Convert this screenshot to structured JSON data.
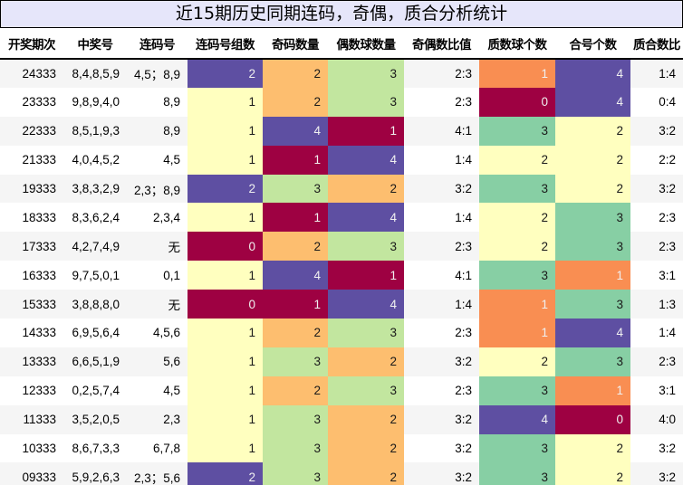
{
  "title": "近15期历史同期连码，奇偶，质合分析统计",
  "columns": [
    "开奖期次",
    "中奖号",
    "连码号",
    "连码号组数",
    "奇码数量",
    "偶数球数量",
    "奇偶数比值",
    "质数球个数",
    "合号个数",
    "质合数比"
  ],
  "palette": {
    "0": "#9e0142",
    "1_red": "#9e0142",
    "orange": "#f98e52",
    "light_orange": "#fdbe6f",
    "yellow": "#ffffbf",
    "light_green": "#c2e69f",
    "green": "#87cfa4",
    "purple": "#5e4fa2"
  },
  "rows": [
    {
      "period": "24333",
      "numbers": "8,4,8,5,9",
      "consecutive": "4,5；8,9",
      "groups": "2",
      "odd": "2",
      "even": "3",
      "odd_even_ratio": "2:3",
      "prime": "1",
      "composite": "4",
      "prime_composite_ratio": "1:4"
    },
    {
      "period": "23333",
      "numbers": "9,8,9,4,0",
      "consecutive": "8,9",
      "groups": "1",
      "odd": "2",
      "even": "3",
      "odd_even_ratio": "2:3",
      "prime": "0",
      "composite": "4",
      "prime_composite_ratio": "0:4"
    },
    {
      "period": "22333",
      "numbers": "8,5,1,9,3",
      "consecutive": "8,9",
      "groups": "1",
      "odd": "4",
      "even": "1",
      "odd_even_ratio": "4:1",
      "prime": "3",
      "composite": "2",
      "prime_composite_ratio": "3:2"
    },
    {
      "period": "21333",
      "numbers": "4,0,4,5,2",
      "consecutive": "4,5",
      "groups": "1",
      "odd": "1",
      "even": "4",
      "odd_even_ratio": "1:4",
      "prime": "2",
      "composite": "2",
      "prime_composite_ratio": "2:2"
    },
    {
      "period": "19333",
      "numbers": "3,8,3,2,9",
      "consecutive": "2,3；8,9",
      "groups": "2",
      "odd": "3",
      "even": "2",
      "odd_even_ratio": "3:2",
      "prime": "3",
      "composite": "2",
      "prime_composite_ratio": "3:2"
    },
    {
      "period": "18333",
      "numbers": "8,3,6,2,4",
      "consecutive": "2,3,4",
      "groups": "1",
      "odd": "1",
      "even": "4",
      "odd_even_ratio": "1:4",
      "prime": "2",
      "composite": "3",
      "prime_composite_ratio": "2:3"
    },
    {
      "period": "17333",
      "numbers": "4,2,7,4,9",
      "consecutive": "无",
      "groups": "0",
      "odd": "2",
      "even": "3",
      "odd_even_ratio": "2:3",
      "prime": "2",
      "composite": "3",
      "prime_composite_ratio": "2:3"
    },
    {
      "period": "16333",
      "numbers": "9,7,5,0,1",
      "consecutive": "0,1",
      "groups": "1",
      "odd": "4",
      "even": "1",
      "odd_even_ratio": "4:1",
      "prime": "3",
      "composite": "1",
      "prime_composite_ratio": "3:1"
    },
    {
      "period": "15333",
      "numbers": "3,8,8,8,0",
      "consecutive": "无",
      "groups": "0",
      "odd": "1",
      "even": "4",
      "odd_even_ratio": "1:4",
      "prime": "1",
      "composite": "3",
      "prime_composite_ratio": "1:3"
    },
    {
      "period": "14333",
      "numbers": "6,9,5,6,4",
      "consecutive": "4,5,6",
      "groups": "1",
      "odd": "2",
      "even": "3",
      "odd_even_ratio": "2:3",
      "prime": "1",
      "composite": "4",
      "prime_composite_ratio": "1:4"
    },
    {
      "period": "13333",
      "numbers": "6,6,5,1,9",
      "consecutive": "5,6",
      "groups": "1",
      "odd": "3",
      "even": "2",
      "odd_even_ratio": "3:2",
      "prime": "2",
      "composite": "3",
      "prime_composite_ratio": "2:3"
    },
    {
      "period": "12333",
      "numbers": "0,2,5,7,4",
      "consecutive": "4,5",
      "groups": "1",
      "odd": "2",
      "even": "3",
      "odd_even_ratio": "2:3",
      "prime": "3",
      "composite": "1",
      "prime_composite_ratio": "3:1"
    },
    {
      "period": "11333",
      "numbers": "3,5,2,0,5",
      "consecutive": "2,3",
      "groups": "1",
      "odd": "3",
      "even": "2",
      "odd_even_ratio": "3:2",
      "prime": "4",
      "composite": "0",
      "prime_composite_ratio": "4:0"
    },
    {
      "period": "10333",
      "numbers": "8,6,7,3,3",
      "consecutive": "6,7,8",
      "groups": "1",
      "odd": "3",
      "even": "2",
      "odd_even_ratio": "3:2",
      "prime": "3",
      "composite": "2",
      "prime_composite_ratio": "3:2"
    },
    {
      "period": "09333",
      "numbers": "5,9,2,6,3",
      "consecutive": "2,3；5,6",
      "groups": "2",
      "odd": "3",
      "even": "2",
      "odd_even_ratio": "3:2",
      "prime": "3",
      "composite": "2",
      "prime_composite_ratio": "3:2"
    }
  ],
  "cell_colors": {
    "groups": {
      "0": "#9e0142",
      "1": "#ffffbf",
      "2": "#5e4fa2"
    },
    "odd": {
      "1": "#9e0142",
      "2": "#fdbe6f",
      "3": "#c2e69f",
      "4": "#5e4fa2"
    },
    "even": {
      "1": "#9e0142",
      "2": "#fdbe6f",
      "3": "#c2e69f",
      "4": "#5e4fa2"
    },
    "prime": {
      "0": "#9e0142",
      "1": "#f98e52",
      "2": "#ffffbf",
      "3": "#87cfa4",
      "4": "#5e4fa2"
    },
    "composite": {
      "0": "#9e0142",
      "1": "#f98e52",
      "2": "#ffffbf",
      "3": "#87cfa4",
      "4": "#5e4fa2"
    }
  },
  "light_text_backgrounds": [
    "#9e0142",
    "#5e4fa2",
    "#f98e52"
  ]
}
